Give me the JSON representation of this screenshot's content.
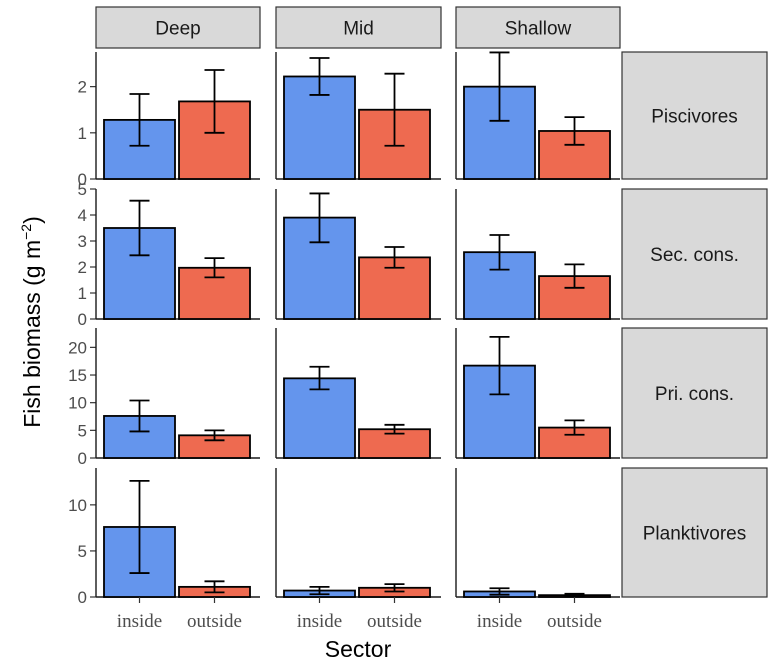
{
  "chart_data": {
    "type": "bar",
    "columns": [
      "Deep",
      "Mid",
      "Shallow"
    ],
    "rows": [
      "Piscivores",
      "Sec. cons.",
      "Pri. cons.",
      "Planktivores"
    ],
    "categories": [
      "inside",
      "outside"
    ],
    "xlabel": "Sector",
    "ylabel": {
      "main": "Fish biomass (g m",
      "superscript": "−2",
      "end": ")"
    },
    "colors": {
      "inside": "#6495ED",
      "outside": "#EE6A50",
      "strip": "#D9D9D9"
    },
    "row_axes": [
      {
        "ylim": [
          0,
          2.75
        ],
        "ticks": [
          0,
          1,
          2
        ],
        "tick_labels": [
          "0",
          "1",
          "2"
        ]
      },
      {
        "ylim": [
          0,
          5.0
        ],
        "ticks": [
          0,
          1,
          2,
          3,
          4,
          5
        ],
        "tick_labels": [
          "0",
          "1",
          "2",
          "3",
          "4",
          "5"
        ]
      },
      {
        "ylim": [
          0,
          23.5
        ],
        "ticks": [
          0,
          5,
          10,
          15,
          20
        ],
        "tick_labels": [
          "0",
          "5",
          "10",
          "15",
          "20"
        ]
      },
      {
        "ylim": [
          0,
          14.0
        ],
        "ticks": [
          0,
          5,
          10
        ],
        "tick_labels": [
          "0",
          "5",
          "10"
        ]
      }
    ],
    "panels": [
      [
        {
          "values": [
            1.28,
            1.68
          ],
          "lower": [
            0.72,
            1.0
          ],
          "upper": [
            1.84,
            2.36
          ]
        },
        {
          "values": [
            2.22,
            1.5
          ],
          "lower": [
            1.82,
            0.72
          ],
          "upper": [
            2.62,
            2.28
          ]
        },
        {
          "values": [
            2.0,
            1.04
          ],
          "lower": [
            1.26,
            0.74
          ],
          "upper": [
            2.74,
            1.34
          ]
        }
      ],
      [
        {
          "values": [
            3.5,
            1.97
          ],
          "lower": [
            2.45,
            1.6
          ],
          "upper": [
            4.55,
            2.34
          ]
        },
        {
          "values": [
            3.9,
            2.37
          ],
          "lower": [
            2.95,
            1.97
          ],
          "upper": [
            4.83,
            2.77
          ]
        },
        {
          "values": [
            2.57,
            1.65
          ],
          "lower": [
            1.9,
            1.2
          ],
          "upper": [
            3.23,
            2.1
          ]
        }
      ],
      [
        {
          "values": [
            7.6,
            4.1
          ],
          "lower": [
            4.8,
            3.2
          ],
          "upper": [
            10.4,
            5.0
          ]
        },
        {
          "values": [
            14.4,
            5.2
          ],
          "lower": [
            12.4,
            4.4
          ],
          "upper": [
            16.5,
            6.0
          ]
        },
        {
          "values": [
            16.7,
            5.5
          ],
          "lower": [
            11.5,
            4.2
          ],
          "upper": [
            21.9,
            6.8
          ]
        }
      ],
      [
        {
          "values": [
            7.6,
            1.1
          ],
          "lower": [
            2.6,
            0.5
          ],
          "upper": [
            12.6,
            1.7
          ]
        },
        {
          "values": [
            0.7,
            1.0
          ],
          "lower": [
            0.3,
            0.6
          ],
          "upper": [
            1.1,
            1.4
          ]
        },
        {
          "values": [
            0.6,
            0.2
          ],
          "lower": [
            0.25,
            0.05
          ],
          "upper": [
            0.95,
            0.35
          ]
        }
      ]
    ]
  }
}
